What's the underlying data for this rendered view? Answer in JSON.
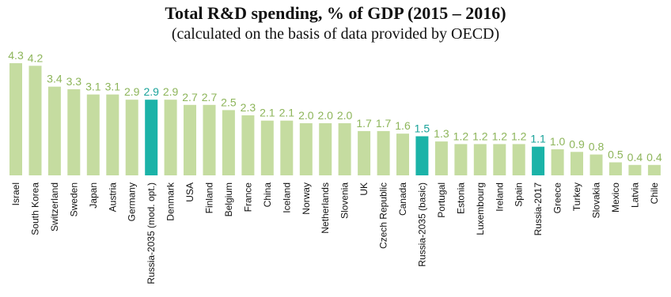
{
  "chart_data": {
    "type": "bar",
    "title": "Total R&D spending, % of GDP (2015 – 2016)",
    "subtitle": "(calculated on the basis of data provided by OECD)",
    "categories": [
      "Israel",
      "South Korea",
      "Switzerland",
      "Sweden",
      "Japan",
      "Austria",
      "Germany",
      "Russia-2035 (mod. opt.)",
      "Denmark",
      "USA",
      "Finland",
      "Belgium",
      "France",
      "China",
      "Iceland",
      "Norway",
      "Netherlands",
      "Slovenia",
      "UK",
      "Czech Republic",
      "Canada",
      "Russia-2035 (basic)",
      "Portugal",
      "Estonia",
      "Luxembourg",
      "Ireland",
      "Spain",
      "Russia-2017",
      "Greece",
      "Turkey",
      "Slovakia",
      "Mexico",
      "Latvia",
      "Chile"
    ],
    "values": [
      4.3,
      4.2,
      3.4,
      3.3,
      3.1,
      3.1,
      2.9,
      2.9,
      2.9,
      2.7,
      2.7,
      2.5,
      2.3,
      2.1,
      2.1,
      2.0,
      2.0,
      2.0,
      1.7,
      1.7,
      1.6,
      1.5,
      1.3,
      1.2,
      1.2,
      1.2,
      1.2,
      1.1,
      1.0,
      0.9,
      0.8,
      0.5,
      0.4,
      0.4
    ],
    "value_labels": [
      "4.3",
      "4.2",
      "3.4",
      "3.3",
      "3.1",
      "3.1",
      "2.9",
      "2.9",
      "2.9",
      "2.7",
      "2.7",
      "2.5",
      "2.3",
      "2.1",
      "2.1",
      "2.0",
      "2.0",
      "2.0",
      "1.7",
      "1.7",
      "1.6",
      "1.5",
      "1.3",
      "1.2",
      "1.2",
      "1.2",
      "1.2",
      "1.1",
      "1.0",
      "0.9",
      "0.8",
      "0.5",
      "0.4",
      "0.4"
    ],
    "highlighted": [
      "Russia-2035 (mod. opt.)",
      "Russia-2035 (basic)",
      "Russia-2017"
    ],
    "colors": {
      "default_bar": "#c5dca0",
      "highlight_bar": "#1bb3a8",
      "default_label": "#8db55a",
      "highlight_label": "#1aa39a"
    },
    "ylim": [
      0,
      4.3
    ],
    "grid": false,
    "legend": "none",
    "xlabel": "",
    "ylabel": ""
  }
}
